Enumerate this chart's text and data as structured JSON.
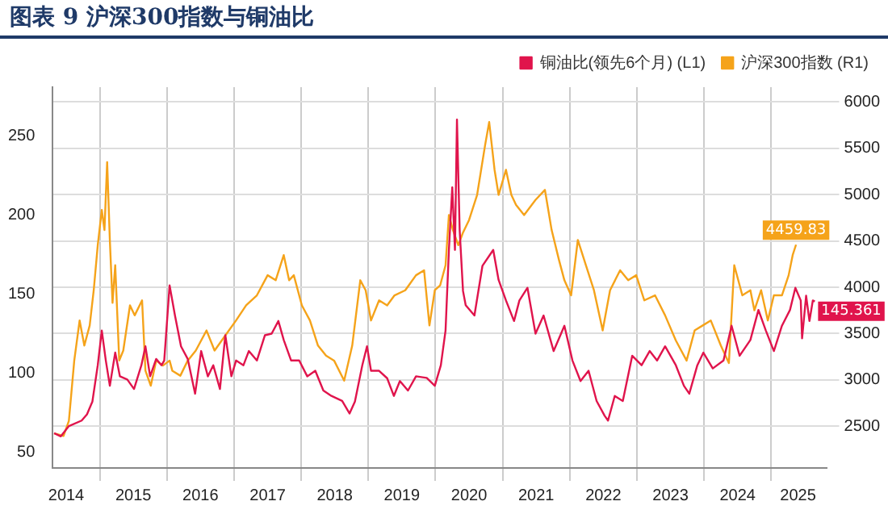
{
  "chart_data": {
    "type": "line",
    "title": "图表 9   沪深300指数与铜油比",
    "xlim": [
      2014.3,
      2025.82
    ],
    "xticks": [
      {
        "value": 2014.5,
        "label": "2014"
      },
      {
        "value": 2015,
        "label": null
      },
      {
        "value": 2015.5,
        "label": "2015"
      },
      {
        "value": 2016,
        "label": null
      },
      {
        "value": 2016.5,
        "label": "2016"
      },
      {
        "value": 2017,
        "label": null
      },
      {
        "value": 2017.5,
        "label": "2017"
      },
      {
        "value": 2018,
        "label": null
      },
      {
        "value": 2018.5,
        "label": "2018"
      },
      {
        "value": 2019,
        "label": null
      },
      {
        "value": 2019.5,
        "label": "2019"
      },
      {
        "value": 2020,
        "label": null
      },
      {
        "value": 2020.5,
        "label": "2020"
      },
      {
        "value": 2021,
        "label": null
      },
      {
        "value": 2021.5,
        "label": "2021"
      },
      {
        "value": 2022,
        "label": null
      },
      {
        "value": 2022.5,
        "label": "2022"
      },
      {
        "value": 2023,
        "label": null
      },
      {
        "value": 2023.5,
        "label": "2023"
      },
      {
        "value": 2024,
        "label": null
      },
      {
        "value": 2024.5,
        "label": "2024"
      },
      {
        "value": 2025,
        "label": null
      },
      {
        "value": 2025.4,
        "label": "2025"
      }
    ],
    "ylim": [
      40,
      281
    ],
    "yticks": [
      50,
      100,
      150,
      200,
      250
    ],
    "y2lim": [
      2050,
      6160
    ],
    "y2ticks": [
      2500,
      3000,
      3500,
      4000,
      4500,
      5000,
      5500,
      6000
    ],
    "grid": true,
    "legend": "top right",
    "marker": "none",
    "series": [
      {
        "name": "铜油比(领先6个月) (L1)",
        "color": "#e0144c",
        "axis": "y",
        "x": [
          2014.32,
          2014.42,
          2014.54,
          2014.73,
          2014.81,
          2014.89,
          2014.97,
          2015.03,
          2015.09,
          2015.15,
          2015.23,
          2015.3,
          2015.41,
          2015.51,
          2015.62,
          2015.68,
          2015.75,
          2015.84,
          2015.92,
          2015.96,
          2016.04,
          2016.12,
          2016.21,
          2016.31,
          2016.42,
          2016.51,
          2016.61,
          2016.69,
          2016.79,
          2016.87,
          2016.96,
          2017.03,
          2017.14,
          2017.22,
          2017.34,
          2017.46,
          2017.56,
          2017.66,
          2017.74,
          2017.85,
          2017.97,
          2018.09,
          2018.21,
          2018.33,
          2018.45,
          2018.61,
          2018.72,
          2018.8,
          2018.91,
          2018.98,
          2019.04,
          2019.16,
          2019.28,
          2019.38,
          2019.47,
          2019.59,
          2019.71,
          2019.87,
          2019.99,
          2020.08,
          2020.15,
          2020.2,
          2020.25,
          2020.29,
          2020.32,
          2020.36,
          2020.41,
          2020.45,
          2020.58,
          2020.7,
          2020.86,
          2020.94,
          2021.05,
          2021.17,
          2021.25,
          2021.37,
          2021.49,
          2021.61,
          2021.76,
          2021.92,
          2022.04,
          2022.16,
          2022.28,
          2022.4,
          2022.52,
          2022.57,
          2022.67,
          2022.79,
          2022.93,
          2023.07,
          2023.19,
          2023.3,
          2023.42,
          2023.58,
          2023.7,
          2023.78,
          2023.9,
          2023.99,
          2024.13,
          2024.29,
          2024.41,
          2024.53,
          2024.69,
          2024.81,
          2024.92,
          2025.04,
          2025.16,
          2025.28,
          2025.36,
          2025.44,
          2025.46,
          2025.52,
          2025.57,
          2025.62,
          2025.65
        ],
        "values": [
          62,
          60,
          66.5,
          70,
          74,
          82,
          105,
          127,
          108,
          92,
          113,
          98,
          96,
          90,
          105,
          117,
          98,
          109,
          105,
          108,
          155.6,
          136.5,
          117,
          109,
          87,
          114,
          98,
          105,
          90,
          124,
          98,
          108,
          105,
          114,
          108,
          124,
          125,
          133,
          121,
          108,
          108,
          98,
          101.5,
          89,
          85.6,
          82.4,
          74.5,
          82,
          105,
          117,
          101.5,
          101.5,
          96.8,
          85.6,
          95,
          89,
          98,
          97,
          92,
          105,
          127,
          178,
          217.6,
          178,
          260.5,
          190.6,
          152,
          143,
          136.5,
          168,
          178,
          159,
          146,
          133,
          146,
          154,
          125,
          136.5,
          114,
          130,
          108,
          95,
          101.5,
          82.4,
          73,
          70,
          85.6,
          82.4,
          111,
          105,
          114,
          108,
          117,
          105,
          92,
          87,
          105,
          113,
          103,
          108,
          130,
          111,
          121,
          140,
          127,
          114,
          130,
          140,
          154,
          146,
          122,
          149,
          133,
          146,
          145.361
        ],
        "value_labels": [
          null,
          null,
          null,
          null,
          null,
          null,
          null,
          null,
          null,
          null,
          null,
          null,
          null,
          null,
          null,
          null,
          null,
          null,
          null,
          null,
          null,
          null,
          null,
          null,
          null,
          null,
          null,
          null,
          null,
          null,
          null,
          null,
          null,
          null,
          null,
          null,
          null,
          null,
          null,
          null,
          null,
          null,
          null,
          null,
          null,
          null,
          null,
          null,
          null,
          null,
          null,
          null,
          null,
          null,
          null,
          null,
          null,
          null,
          null,
          null,
          null,
          null,
          null,
          null,
          null,
          null,
          null,
          null,
          null,
          null,
          null,
          null,
          null,
          null,
          null,
          null,
          null,
          null,
          null,
          null,
          null,
          null,
          null,
          null,
          null,
          null,
          null,
          null,
          null,
          null,
          null,
          null,
          null,
          null,
          null,
          null,
          null,
          null,
          null,
          null,
          null,
          null,
          null,
          null,
          null,
          null,
          null,
          null,
          null,
          null,
          null,
          null,
          null,
          null,
          "145.361"
        ]
      },
      {
        "name": "沪深300指数 (R1)",
        "color": "#f5a31a",
        "axis": "y2",
        "x": [
          2014.32,
          2014.46,
          2014.54,
          2014.62,
          2014.7,
          2014.77,
          2014.85,
          2014.91,
          2014.97,
          2015.03,
          2015.07,
          2015.11,
          2015.15,
          2015.19,
          2015.23,
          2015.29,
          2015.35,
          2015.45,
          2015.52,
          2015.63,
          2015.68,
          2015.76,
          2015.84,
          2015.94,
          2016.04,
          2016.08,
          2016.2,
          2016.31,
          2016.43,
          2016.59,
          2016.71,
          2016.87,
          2017.03,
          2017.18,
          2017.34,
          2017.5,
          2017.62,
          2017.74,
          2017.82,
          2017.89,
          2018.01,
          2018.13,
          2018.25,
          2018.37,
          2018.49,
          2018.64,
          2018.76,
          2018.88,
          2018.96,
          2019.04,
          2019.16,
          2019.28,
          2019.39,
          2019.55,
          2019.71,
          2019.83,
          2019.91,
          2019.99,
          2020.07,
          2020.15,
          2020.2,
          2020.26,
          2020.34,
          2020.41,
          2020.5,
          2020.62,
          2020.74,
          2020.8,
          2020.88,
          2020.94,
          2021.05,
          2021.13,
          2021.2,
          2021.32,
          2021.49,
          2021.63,
          2021.73,
          2021.84,
          2021.92,
          2022.02,
          2022.12,
          2022.24,
          2022.36,
          2022.49,
          2022.6,
          2022.75,
          2022.87,
          2022.99,
          2023.11,
          2023.27,
          2023.42,
          2023.58,
          2023.74,
          2023.86,
          2023.98,
          2024.1,
          2024.25,
          2024.37,
          2024.45,
          2024.57,
          2024.69,
          2024.75,
          2024.85,
          2024.95,
          2025.04,
          2025.16,
          2025.26,
          2025.32,
          2025.37
        ],
        "values": [
          2423,
          2396,
          2558,
          3209,
          3642,
          3371,
          3588,
          3968,
          4455,
          4835,
          4618,
          5350,
          4510,
          3832,
          4238,
          3209,
          3317,
          3805,
          3697,
          3859,
          3100,
          2938,
          3209,
          3155,
          3209,
          3100,
          3046,
          3209,
          3317,
          3534,
          3317,
          3480,
          3642,
          3805,
          3913,
          4130,
          4076,
          4347,
          4076,
          4130,
          3805,
          3642,
          3371,
          3263,
          3209,
          2992,
          3371,
          4076,
          3968,
          3642,
          3859,
          3805,
          3913,
          3968,
          4130,
          4184,
          3588,
          3968,
          4022,
          4238,
          4780,
          4618,
          4455,
          4591,
          4726,
          4997,
          5539,
          5783,
          5268,
          4997,
          5268,
          4997,
          4889,
          4780,
          4943,
          5051,
          4618,
          4293,
          4076,
          3913,
          4510,
          4238,
          3968,
          3534,
          3968,
          4184,
          4076,
          4130,
          3859,
          3913,
          3697,
          3426,
          3209,
          3534,
          3588,
          3642,
          3371,
          3182,
          4238,
          3913,
          3968,
          3751,
          3968,
          3642,
          3913,
          3913,
          4130,
          4347,
          4459.83
        ],
        "value_labels": [
          null,
          null,
          null,
          null,
          null,
          null,
          null,
          null,
          null,
          null,
          null,
          null,
          null,
          null,
          null,
          null,
          null,
          null,
          null,
          null,
          null,
          null,
          null,
          null,
          null,
          null,
          null,
          null,
          null,
          null,
          null,
          null,
          null,
          null,
          null,
          null,
          null,
          null,
          null,
          null,
          null,
          null,
          null,
          null,
          null,
          null,
          null,
          null,
          null,
          null,
          null,
          null,
          null,
          null,
          null,
          null,
          null,
          null,
          null,
          null,
          null,
          null,
          null,
          null,
          null,
          null,
          null,
          null,
          null,
          null,
          null,
          null,
          null,
          null,
          null,
          null,
          null,
          null,
          null,
          null,
          null,
          null,
          null,
          null,
          null,
          null,
          null,
          null,
          null,
          null,
          null,
          null,
          null,
          null,
          null,
          null,
          null,
          null,
          null,
          null,
          null,
          null,
          null,
          null,
          null,
          null,
          null,
          null,
          "4459.83"
        ]
      }
    ]
  }
}
